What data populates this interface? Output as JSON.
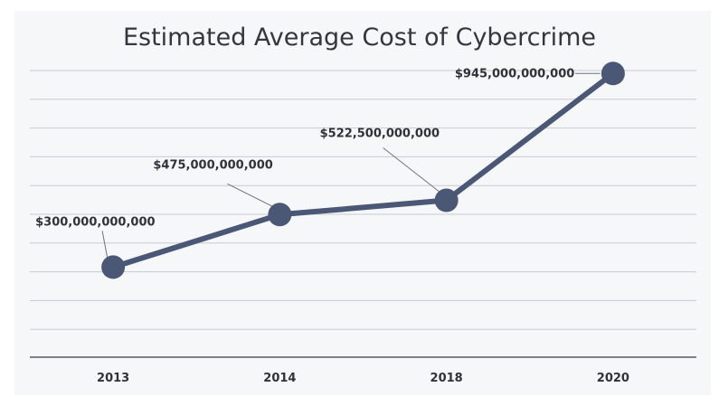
{
  "chart_data": {
    "type": "line",
    "title": "Estimated Average Cost of Cybercrime",
    "categories": [
      "2013",
      "2014",
      "2018",
      "2020"
    ],
    "series": [
      {
        "values": [
          300000000000,
          475000000000,
          522500000000,
          945000000000
        ]
      }
    ],
    "data_labels": [
      "$300,000,000,000",
      "$475,000,000,000",
      "$522,500,000,000",
      "$945,000,000,000"
    ],
    "ylim": [
      0,
      1000000000000
    ],
    "grid": true,
    "legend": "none",
    "colors": {
      "line": "#4a5775",
      "grid": "#c9cbcf",
      "axis": "#555a60",
      "background": "#f6f7f9"
    }
  }
}
